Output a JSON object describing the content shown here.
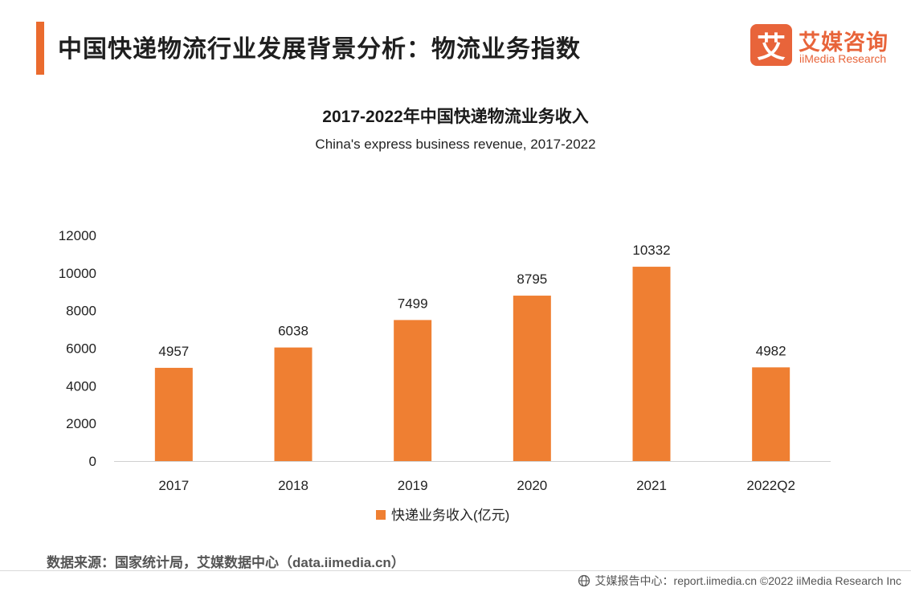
{
  "header": {
    "title": "中国快递物流行业发展背景分析：物流业务指数",
    "accent_color": "#ea6b2e"
  },
  "logo": {
    "mark": "艾",
    "name_cn": "艾媒咨询",
    "name_en": "iiMedia Research",
    "color": "#e8643a"
  },
  "chart_data": {
    "type": "bar",
    "title": "2017-2022年中国快递物流业务收入",
    "subtitle": "China's express business revenue, 2017-2022",
    "categories": [
      "2017",
      "2018",
      "2019",
      "2020",
      "2021",
      "2022Q2"
    ],
    "series": [
      {
        "name": "快递业务收入(亿元)",
        "values": [
          4957,
          6038,
          7499,
          8795,
          10332,
          4982
        ],
        "color": "#ef7f32"
      }
    ],
    "ylim": [
      0,
      12000
    ],
    "yticks": [
      0,
      2000,
      4000,
      6000,
      8000,
      10000,
      12000
    ],
    "grid": false,
    "legend_position": "bottom-center",
    "data_labels": true
  },
  "source": "数据来源：国家统计局，艾媒数据中心（data.iimedia.cn）",
  "footer": {
    "text": "艾媒报告中心：report.iimedia.cn  ©2022  iiMedia Research  Inc",
    "icon": "globe-icon"
  }
}
